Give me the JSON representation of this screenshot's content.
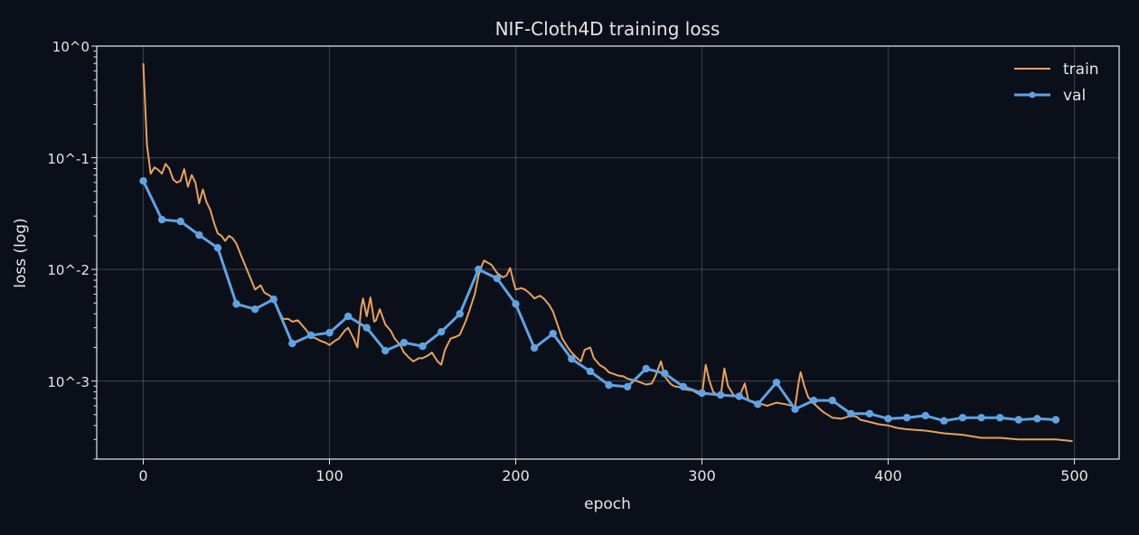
{
  "chart_data": {
    "type": "line",
    "title": "NIF-Cloth4D training loss",
    "xlabel": "epoch",
    "ylabel": "loss (log)",
    "xlim": [
      -25,
      524
    ],
    "ylim": [
      0.0002,
      1
    ],
    "yscale": "log",
    "grid": true,
    "legend_position": "top-right",
    "x_ticks": [
      0,
      100,
      200,
      300,
      400,
      500
    ],
    "y_ticks": [
      {
        "value": 1,
        "label": "10^0"
      },
      {
        "value": 0.1,
        "label": "10^-1"
      },
      {
        "value": 0.01,
        "label": "10^-2"
      },
      {
        "value": 0.001,
        "label": "10^-3"
      }
    ],
    "background": "#0b0f19",
    "series": [
      {
        "name": "train",
        "color": "#e8a15e",
        "marker": false,
        "points": [
          [
            0,
            0.7
          ],
          [
            2,
            0.13
          ],
          [
            4,
            0.072
          ],
          [
            6,
            0.082
          ],
          [
            8,
            0.078
          ],
          [
            10,
            0.072
          ],
          [
            12,
            0.088
          ],
          [
            14,
            0.08
          ],
          [
            16,
            0.064
          ],
          [
            18,
            0.06
          ],
          [
            20,
            0.062
          ],
          [
            22,
            0.079
          ],
          [
            24,
            0.055
          ],
          [
            26,
            0.07
          ],
          [
            28,
            0.06
          ],
          [
            30,
            0.039
          ],
          [
            32,
            0.052
          ],
          [
            34,
            0.04
          ],
          [
            36,
            0.034
          ],
          [
            38,
            0.026
          ],
          [
            40,
            0.021
          ],
          [
            42,
            0.02
          ],
          [
            44,
            0.018
          ],
          [
            46,
            0.02
          ],
          [
            48,
            0.019
          ],
          [
            50,
            0.017
          ],
          [
            52,
            0.014
          ],
          [
            55,
            0.0106
          ],
          [
            58,
            0.008
          ],
          [
            60,
            0.0066
          ],
          [
            63,
            0.0072
          ],
          [
            65,
            0.0062
          ],
          [
            68,
            0.0058
          ],
          [
            70,
            0.0055
          ],
          [
            73,
            0.0042
          ],
          [
            75,
            0.0036
          ],
          [
            78,
            0.0036
          ],
          [
            80,
            0.0034
          ],
          [
            83,
            0.0035
          ],
          [
            85,
            0.0032
          ],
          [
            88,
            0.0028
          ],
          [
            90,
            0.0025
          ],
          [
            93,
            0.0024
          ],
          [
            95,
            0.0023
          ],
          [
            98,
            0.0022
          ],
          [
            100,
            0.0021
          ],
          [
            103,
            0.0023
          ],
          [
            105,
            0.0024
          ],
          [
            108,
            0.0028
          ],
          [
            110,
            0.003
          ],
          [
            113,
            0.0024
          ],
          [
            115,
            0.002
          ],
          [
            117,
            0.0045
          ],
          [
            118,
            0.0055
          ],
          [
            120,
            0.0038
          ],
          [
            122,
            0.0056
          ],
          [
            124,
            0.0034
          ],
          [
            125,
            0.0035
          ],
          [
            127,
            0.0044
          ],
          [
            130,
            0.0032
          ],
          [
            133,
            0.0028
          ],
          [
            135,
            0.0024
          ],
          [
            138,
            0.0021
          ],
          [
            140,
            0.0018
          ],
          [
            143,
            0.0016
          ],
          [
            145,
            0.0015
          ],
          [
            148,
            0.0016
          ],
          [
            150,
            0.0016
          ],
          [
            153,
            0.0017
          ],
          [
            155,
            0.0018
          ],
          [
            158,
            0.0015
          ],
          [
            160,
            0.0014
          ],
          [
            162,
            0.0019
          ],
          [
            165,
            0.0024
          ],
          [
            168,
            0.0025
          ],
          [
            170,
            0.0026
          ],
          [
            173,
            0.0034
          ],
          [
            175,
            0.0042
          ],
          [
            178,
            0.006
          ],
          [
            180,
            0.0088
          ],
          [
            182,
            0.011
          ],
          [
            183,
            0.012
          ],
          [
            185,
            0.0115
          ],
          [
            187,
            0.011
          ],
          [
            189,
            0.0098
          ],
          [
            190,
            0.0093
          ],
          [
            193,
            0.0085
          ],
          [
            195,
            0.0088
          ],
          [
            197,
            0.0103
          ],
          [
            199,
            0.0075
          ],
          [
            200,
            0.0066
          ],
          [
            203,
            0.0068
          ],
          [
            205,
            0.0066
          ],
          [
            208,
            0.006
          ],
          [
            210,
            0.0055
          ],
          [
            213,
            0.0058
          ],
          [
            215,
            0.0055
          ],
          [
            218,
            0.0048
          ],
          [
            220,
            0.0042
          ],
          [
            223,
            0.003
          ],
          [
            225,
            0.0024
          ],
          [
            228,
            0.002
          ],
          [
            230,
            0.0018
          ],
          [
            233,
            0.0016
          ],
          [
            235,
            0.0015
          ],
          [
            237,
            0.0019
          ],
          [
            240,
            0.002
          ],
          [
            242,
            0.0016
          ],
          [
            245,
            0.0014
          ],
          [
            248,
            0.0013
          ],
          [
            250,
            0.0012
          ],
          [
            253,
            0.00115
          ],
          [
            255,
            0.00112
          ],
          [
            258,
            0.0011
          ],
          [
            260,
            0.00105
          ],
          [
            265,
            0.001
          ],
          [
            270,
            0.00093
          ],
          [
            273,
            0.00095
          ],
          [
            275,
            0.0011
          ],
          [
            278,
            0.0015
          ],
          [
            280,
            0.0011
          ],
          [
            283,
            0.00095
          ],
          [
            285,
            0.0009
          ],
          [
            288,
            0.00088
          ],
          [
            290,
            0.00085
          ],
          [
            295,
            0.00082
          ],
          [
            300,
            0.00074
          ],
          [
            302,
            0.0014
          ],
          [
            304,
            0.001
          ],
          [
            306,
            0.0008
          ],
          [
            310,
            0.00071
          ],
          [
            312,
            0.0013
          ],
          [
            314,
            0.0009
          ],
          [
            317,
            0.00075
          ],
          [
            320,
            0.00072
          ],
          [
            323,
            0.00095
          ],
          [
            325,
            0.00067
          ],
          [
            330,
            0.00064
          ],
          [
            335,
            0.0006
          ],
          [
            340,
            0.00064
          ],
          [
            345,
            0.00062
          ],
          [
            350,
            0.00059
          ],
          [
            352,
            0.001
          ],
          [
            353,
            0.0012
          ],
          [
            355,
            0.0009
          ],
          [
            357,
            0.00072
          ],
          [
            360,
            0.00063
          ],
          [
            365,
            0.00053
          ],
          [
            370,
            0.00047
          ],
          [
            375,
            0.00046
          ],
          [
            380,
            0.00049
          ],
          [
            383,
            0.00048
          ],
          [
            385,
            0.00045
          ],
          [
            390,
            0.00043
          ],
          [
            395,
            0.00041
          ],
          [
            400,
            0.0004
          ],
          [
            405,
            0.00038
          ],
          [
            410,
            0.00037
          ],
          [
            420,
            0.00036
          ],
          [
            430,
            0.00034
          ],
          [
            440,
            0.00033
          ],
          [
            450,
            0.00031
          ],
          [
            460,
            0.00031
          ],
          [
            470,
            0.0003
          ],
          [
            480,
            0.0003
          ],
          [
            490,
            0.0003
          ],
          [
            499,
            0.00029
          ]
        ]
      },
      {
        "name": "val",
        "color": "#5fa3e3",
        "marker": true,
        "points": [
          [
            0,
            0.062
          ],
          [
            10,
            0.0279
          ],
          [
            20,
            0.0269
          ],
          [
            30,
            0.0203
          ],
          [
            40,
            0.0156
          ],
          [
            50,
            0.0049
          ],
          [
            60,
            0.0044
          ],
          [
            70,
            0.0054
          ],
          [
            80,
            0.00217
          ],
          [
            90,
            0.00257
          ],
          [
            100,
            0.00271
          ],
          [
            110,
            0.0038
          ],
          [
            120,
            0.003
          ],
          [
            130,
            0.00187
          ],
          [
            140,
            0.00221
          ],
          [
            150,
            0.00205
          ],
          [
            160,
            0.00276
          ],
          [
            170,
            0.004
          ],
          [
            180,
            0.01
          ],
          [
            190,
            0.0083
          ],
          [
            200,
            0.0049
          ],
          [
            210,
            0.00198
          ],
          [
            220,
            0.00266
          ],
          [
            230,
            0.00158
          ],
          [
            240,
            0.00122
          ],
          [
            250,
            0.00092
          ],
          [
            260,
            0.00089
          ],
          [
            270,
            0.00129
          ],
          [
            280,
            0.00117
          ],
          [
            290,
            0.00089
          ],
          [
            300,
            0.00078
          ],
          [
            310,
            0.00075
          ],
          [
            320,
            0.00073
          ],
          [
            330,
            0.00062
          ],
          [
            340,
            0.00097
          ],
          [
            350,
            0.00056
          ],
          [
            360,
            0.00067
          ],
          [
            370,
            0.00067
          ],
          [
            380,
            0.00051
          ],
          [
            390,
            0.00051
          ],
          [
            400,
            0.00046
          ],
          [
            410,
            0.00047
          ],
          [
            420,
            0.00049
          ],
          [
            430,
            0.00044
          ],
          [
            440,
            0.00047
          ],
          [
            450,
            0.00047
          ],
          [
            460,
            0.00047
          ],
          [
            470,
            0.00045
          ],
          [
            480,
            0.00046
          ],
          [
            490,
            0.00045
          ]
        ]
      }
    ]
  }
}
